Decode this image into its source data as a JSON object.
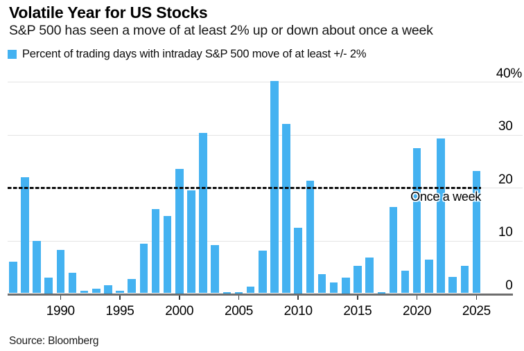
{
  "header": {
    "title": "Volatile Year for US Stocks",
    "subtitle": "S&P 500 has seen a move of at least 2% up or down about once a week"
  },
  "legend": {
    "swatch_color": "#44b2f1",
    "label": "Percent of trading days with intraday S&P 500 move of at least +/- 2%"
  },
  "chart_data": {
    "type": "bar",
    "title": "Volatile Year for US Stocks",
    "series_name": "Percent of trading days with intraday S&P 500 move of at least +/- 2%",
    "unit": "%",
    "x": [
      1986,
      1987,
      1988,
      1989,
      1990,
      1991,
      1992,
      1993,
      1994,
      1995,
      1996,
      1997,
      1998,
      1999,
      2000,
      2001,
      2002,
      2003,
      2004,
      2005,
      2006,
      2007,
      2008,
      2009,
      2010,
      2011,
      2012,
      2013,
      2014,
      2015,
      2016,
      2017,
      2018,
      2019,
      2020,
      2021,
      2022,
      2023,
      2024,
      2025
    ],
    "values": [
      5.9,
      21.9,
      9.9,
      3.0,
      8.2,
      3.9,
      0.4,
      0.8,
      1.5,
      0.4,
      2.7,
      9.3,
      15.9,
      14.6,
      23.5,
      19.4,
      30.2,
      9.1,
      0.2,
      0.2,
      1.2,
      8.0,
      40.0,
      31.9,
      12.4,
      21.2,
      3.6,
      2.0,
      3.0,
      5.1,
      6.7,
      0.2,
      16.3,
      4.3,
      27.3,
      6.3,
      29.2,
      3.1,
      5.1,
      23.0
    ],
    "ylim": [
      0,
      40
    ],
    "yticks": [
      {
        "value": 0,
        "label": "0"
      },
      {
        "value": 10,
        "label": "10"
      },
      {
        "value": 20,
        "label": "20"
      },
      {
        "value": 30,
        "label": "30"
      },
      {
        "value": 40,
        "label": "40%"
      }
    ],
    "xticks": [
      "1990",
      "1995",
      "2000",
      "2005",
      "2010",
      "2015",
      "2020",
      "2025"
    ],
    "grid": "horizontal",
    "legend_position": "top",
    "bar_color": "#44b2f1",
    "reference_line": {
      "value": 20,
      "label": "Once a week",
      "style": "dashed",
      "color": "#000000"
    }
  },
  "footer": {
    "source": "Source: Bloomberg"
  }
}
